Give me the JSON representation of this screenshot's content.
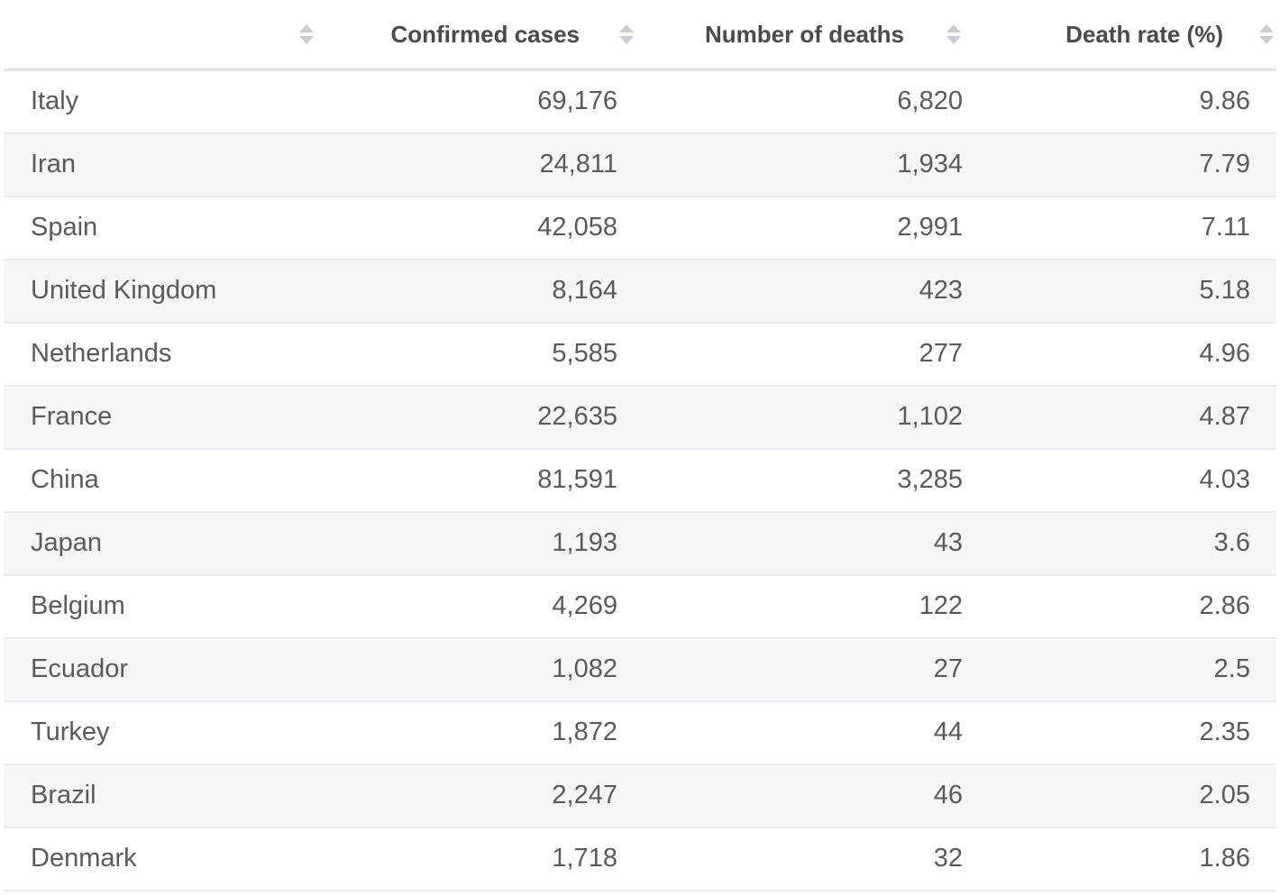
{
  "chart_data": {
    "type": "table",
    "columns": [
      "",
      "Confirmed cases",
      "Number of deaths",
      "Death rate (%)"
    ],
    "rows": [
      {
        "country": "Italy",
        "cases": "69,176",
        "deaths": "6,820",
        "rate": "9.86"
      },
      {
        "country": "Iran",
        "cases": "24,811",
        "deaths": "1,934",
        "rate": "7.79"
      },
      {
        "country": "Spain",
        "cases": "42,058",
        "deaths": "2,991",
        "rate": "7.11"
      },
      {
        "country": "United Kingdom",
        "cases": "8,164",
        "deaths": "423",
        "rate": "5.18"
      },
      {
        "country": "Netherlands",
        "cases": "5,585",
        "deaths": "277",
        "rate": "4.96"
      },
      {
        "country": "France",
        "cases": "22,635",
        "deaths": "1,102",
        "rate": "4.87"
      },
      {
        "country": "China",
        "cases": "81,591",
        "deaths": "3,285",
        "rate": "4.03"
      },
      {
        "country": "Japan",
        "cases": "1,193",
        "deaths": "43",
        "rate": "3.6"
      },
      {
        "country": "Belgium",
        "cases": "4,269",
        "deaths": "122",
        "rate": "2.86"
      },
      {
        "country": "Ecuador",
        "cases": "1,082",
        "deaths": "27",
        "rate": "2.5"
      },
      {
        "country": "Turkey",
        "cases": "1,872",
        "deaths": "44",
        "rate": "2.35"
      },
      {
        "country": "Brazil",
        "cases": "2,247",
        "deaths": "46",
        "rate": "2.05"
      },
      {
        "country": "Denmark",
        "cases": "1,718",
        "deaths": "32",
        "rate": "1.86"
      }
    ]
  },
  "icons": {
    "sort": "sort-icon"
  },
  "colors": {
    "stripe": "#f4f6f9",
    "header_text": "#4a4a4a",
    "cell_text": "#5a5a5a",
    "sort_icon": "#c9ccd1"
  }
}
